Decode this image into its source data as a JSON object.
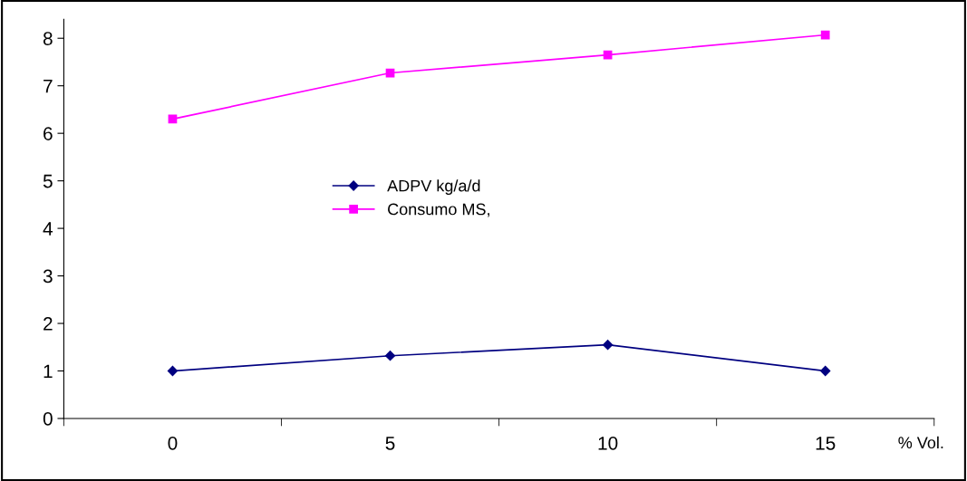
{
  "chart_data": {
    "type": "line",
    "categories": [
      "0",
      "5",
      "10",
      "15"
    ],
    "xlabel": "% Vol.",
    "series": [
      {
        "name": "ADPV kg/a/d",
        "color": "#000080",
        "marker": "diamond",
        "values": [
          1.0,
          1.32,
          1.55,
          1.0
        ]
      },
      {
        "name": "Consumo MS,",
        "color": "#ff00ff",
        "marker": "square",
        "values": [
          6.3,
          7.27,
          7.65,
          8.07
        ]
      }
    ],
    "ylim": [
      0,
      8.4
    ],
    "yticks": [
      0,
      1,
      2,
      3,
      4,
      5,
      6,
      7,
      8
    ],
    "grid": false,
    "legend": "center",
    "line_style": "solid"
  }
}
